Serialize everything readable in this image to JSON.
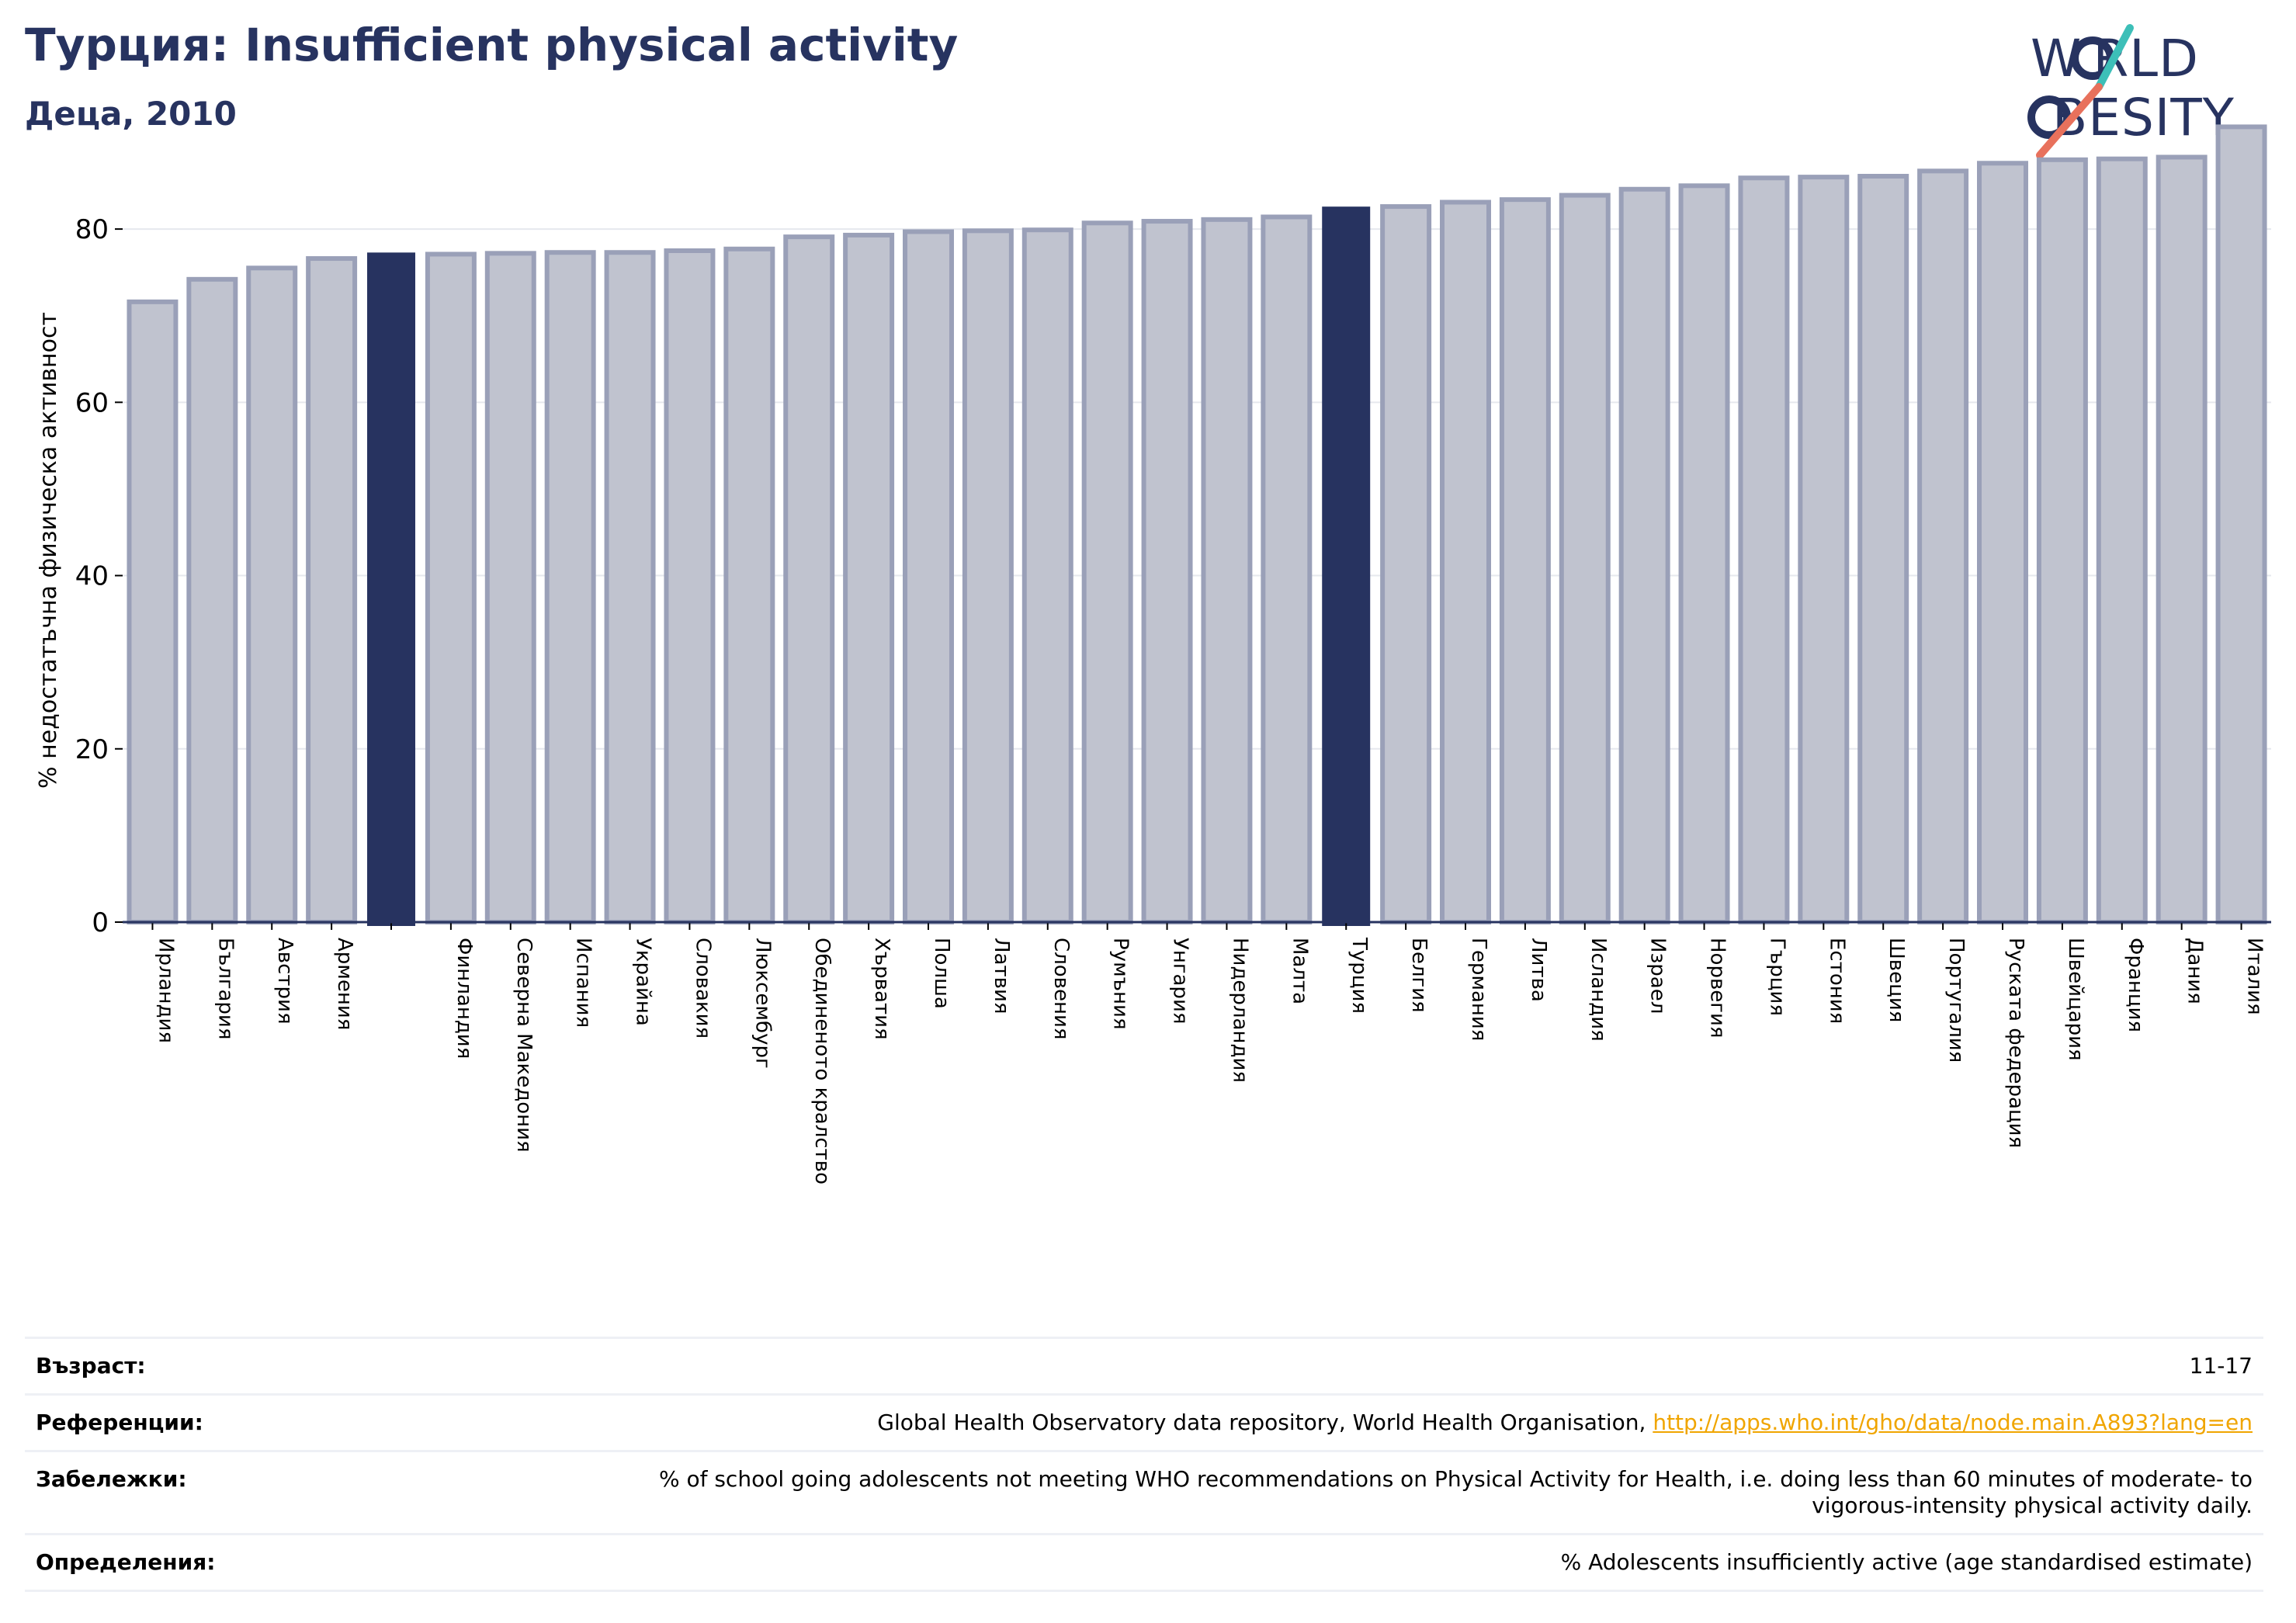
{
  "header": {
    "title": "Турция: Insufficient physical activity",
    "subtitle": "Деца, 2010"
  },
  "logo": {
    "line1": "W RLD",
    "line2": "BESITY",
    "name": "world-obesity-logo"
  },
  "colors": {
    "highlight": "#273360",
    "bar_fill": "#c0c3cf",
    "bar_stroke": "#9aa0b8",
    "accent_teal": "#3dbfb8",
    "accent_coral": "#e8715c",
    "link": "#f0a500"
  },
  "chart_data": {
    "type": "bar",
    "ylabel": "% недостатъчна физическа активност",
    "ylim": [
      0,
      93
    ],
    "yticks": [
      0,
      20,
      40,
      60,
      80
    ],
    "grid": true,
    "categories": [
      "Ирландия",
      "България",
      "Австрия",
      "Армения",
      "",
      "Финландия",
      "Северна Македония",
      "Испания",
      "Украйна",
      "Словакия",
      "Люксембург",
      "Обединеното кралство",
      "Хърватия",
      "Полша",
      "Латвия",
      "Словения",
      "Румъния",
      "Унгария",
      "Нидерландия",
      "Малта",
      "Турция",
      "Белгия",
      "Германия",
      "Литва",
      "Исландия",
      "Израел",
      "Норвегия",
      "Гърция",
      "Естония",
      "Швеция",
      "Португалия",
      "Руската федерация",
      "Швейцария",
      "Франция",
      "Дания",
      "Италия"
    ],
    "values": [
      71.6,
      74.2,
      75.5,
      76.6,
      77.2,
      77.1,
      77.2,
      77.3,
      77.3,
      77.5,
      77.7,
      79.1,
      79.3,
      79.7,
      79.8,
      79.9,
      80.7,
      80.9,
      81.1,
      81.4,
      82.5,
      82.6,
      83.1,
      83.4,
      83.9,
      84.6,
      85.0,
      85.9,
      86.0,
      86.1,
      86.7,
      87.6,
      88.0,
      88.1,
      88.3,
      91.8
    ],
    "highlighted": [
      4,
      20
    ]
  },
  "info": {
    "age_label": "Възраст:",
    "age_value": "11-17",
    "refs_label": "Референции:",
    "refs_text": "Global Health Observatory data repository, World Health Organisation, ",
    "refs_link": "http://apps.who.int/gho/data/node.main.A893?lang=en",
    "notes_label": "Забележки:",
    "notes_value": "% of school going adolescents not meeting WHO recommendations on Physical Activity for Health, i.e. doing less than 60 minutes of moderate- to vigorous-intensity physical activity daily.",
    "defs_label": "Определения:",
    "defs_value": "% Adolescents insufficiently active (age standardised estimate)"
  }
}
